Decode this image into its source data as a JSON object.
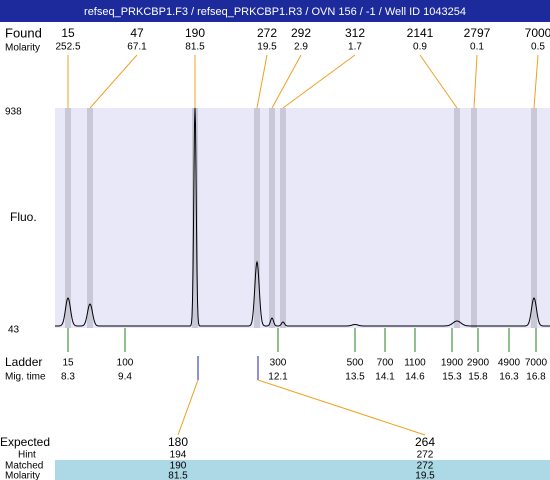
{
  "header": {
    "title": "refseq_PRKCBP1.F3 / refseq_PRKCBP1.R3 / OVN 156 / -1 / Well ID 1043254"
  },
  "found": {
    "label": "Found",
    "molarity_label": "Molarity",
    "peaks": [
      {
        "size": 15,
        "molarity": 252.5
      },
      {
        "size": 47,
        "molarity": 67.1
      },
      {
        "size": 190,
        "molarity": 81.5
      },
      {
        "size": 272,
        "molarity": 19.5
      },
      {
        "size": 292,
        "molarity": 2.9
      },
      {
        "size": 312,
        "molarity": 1.7
      },
      {
        "size": 2141,
        "molarity": 0.9
      },
      {
        "size": 2797,
        "molarity": 0.1
      },
      {
        "size": 7000,
        "molarity": 0.5
      }
    ]
  },
  "axis": {
    "label": "Fluo.",
    "max": 938,
    "min": 43
  },
  "ladder": {
    "label": "Ladder",
    "time_label": "Mig. time",
    "bands": [
      {
        "size": 15,
        "time": 8.3
      },
      {
        "size": 100,
        "time": 9.4
      },
      {
        "size": 300,
        "time": 12.1
      },
      {
        "size": 500,
        "time": 13.5
      },
      {
        "size": 700,
        "time": 14.1
      },
      {
        "size": 1100,
        "time": 14.6
      },
      {
        "size": 1900,
        "time": 15.3
      },
      {
        "size": 2900,
        "time": 15.8
      },
      {
        "size": 4900,
        "time": 16.3
      },
      {
        "size": 7000,
        "time": 16.8
      }
    ]
  },
  "expected": {
    "label": "Expected",
    "hint_label": "Hint",
    "matched_label": "Matched",
    "molarity_label": "Molarity",
    "columns": [
      {
        "expected": 180,
        "hint": 194,
        "matched": 190,
        "molarity": 81.5
      },
      {
        "expected": 264,
        "hint": 272,
        "matched": 272,
        "molarity": 19.5
      }
    ]
  }
}
